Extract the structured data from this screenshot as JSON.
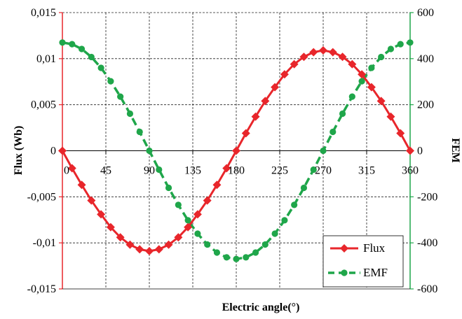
{
  "chart_data": {
    "type": "line",
    "xlabel": "Electric angle(°)",
    "ylabel_left": "Flux (Wb)",
    "ylabel_right": "FEM",
    "x_ticks": [
      "0",
      "45",
      "90",
      "135",
      "180",
      "225",
      "270",
      "315",
      "360"
    ],
    "y_left_ticks": [
      "0,015",
      "0,01",
      "0,005",
      "0",
      "-0,005",
      "-0,01",
      "-0,015"
    ],
    "y_right_ticks": [
      "600",
      "400",
      "200",
      "0",
      "-200",
      "-400",
      "-600"
    ],
    "xlim": [
      0,
      360
    ],
    "ylim_left": [
      -0.015,
      0.015
    ],
    "ylim_right": [
      -600,
      600
    ],
    "grid": true,
    "legend_position": "bottom-right",
    "colors": {
      "flux": "#e8262b",
      "emf": "#1fa64a",
      "left_axis": "#e8262b",
      "right_axis": "#1fa64a"
    },
    "series": [
      {
        "name": "Flux",
        "axis": "left",
        "marker": "diamond",
        "x": [
          0,
          10,
          20,
          30,
          40,
          50,
          60,
          70,
          80,
          90,
          100,
          110,
          120,
          130,
          140,
          150,
          160,
          170,
          180,
          190,
          200,
          210,
          220,
          230,
          240,
          250,
          260,
          270,
          280,
          290,
          300,
          310,
          320,
          330,
          340,
          350,
          360
        ],
        "y": [
          0,
          -0.0019,
          -0.0037,
          -0.0054,
          -0.0069,
          -0.0083,
          -0.0094,
          -0.0102,
          -0.0107,
          -0.0109,
          -0.0107,
          -0.0102,
          -0.0094,
          -0.0083,
          -0.0069,
          -0.0054,
          -0.0037,
          -0.0019,
          0,
          0.0019,
          0.0037,
          0.0054,
          0.0069,
          0.0083,
          0.0094,
          0.0102,
          0.0107,
          0.0109,
          0.0107,
          0.0102,
          0.0094,
          0.0083,
          0.0069,
          0.0054,
          0.0037,
          0.0019,
          0
        ]
      },
      {
        "name": "EMF",
        "axis": "right",
        "marker": "circle",
        "x": [
          0,
          10,
          20,
          30,
          40,
          50,
          60,
          70,
          80,
          90,
          100,
          110,
          120,
          130,
          140,
          150,
          160,
          170,
          180,
          190,
          200,
          210,
          220,
          230,
          240,
          250,
          260,
          270,
          280,
          290,
          300,
          310,
          320,
          330,
          340,
          350,
          360
        ],
        "y": [
          470,
          463,
          442,
          407,
          360,
          302,
          235,
          161,
          82,
          0,
          -82,
          -161,
          -235,
          -302,
          -360,
          -407,
          -442,
          -463,
          -470,
          -463,
          -442,
          -407,
          -360,
          -302,
          -235,
          -161,
          -82,
          0,
          82,
          161,
          235,
          302,
          360,
          407,
          442,
          463,
          470
        ]
      }
    ]
  }
}
